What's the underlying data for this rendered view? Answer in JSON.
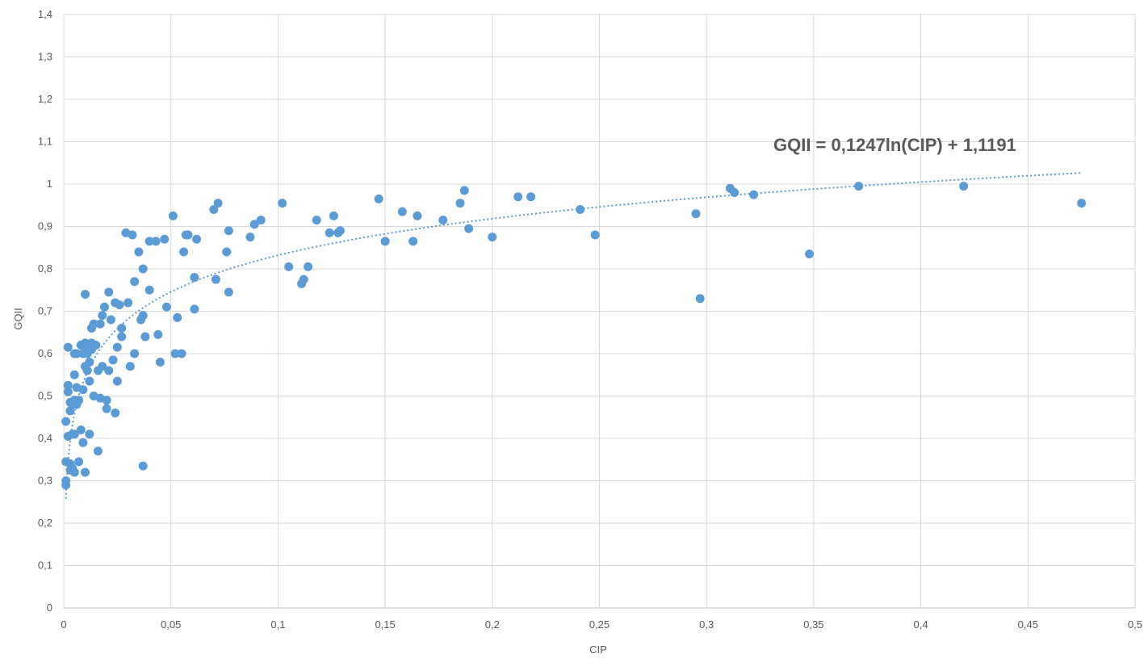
{
  "chart_data": {
    "type": "scatter",
    "title": "",
    "xlabel": "CIP",
    "ylabel": "GQII",
    "xlim": [
      0,
      0.5
    ],
    "ylim": [
      0,
      1.4
    ],
    "x_ticks": [
      "0",
      "0,05",
      "0,1",
      "0,15",
      "0,2",
      "0,25",
      "0,3",
      "0,35",
      "0,4",
      "0,45",
      "0,5"
    ],
    "y_ticks": [
      "0",
      "0,1",
      "0,2",
      "0,3",
      "0,4",
      "0,5",
      "0,6",
      "0,7",
      "0,8",
      "0,9",
      "1",
      "1,1",
      "1,2",
      "1,3",
      "1,4"
    ],
    "grid": true,
    "legend": "none",
    "color": "#5b9bd5",
    "trendline": {
      "type": "logarithmic",
      "a": 0.1247,
      "b": 1.1191,
      "x_range": [
        0.001,
        0.475
      ],
      "style": "dotted",
      "label": "GQII = 0,1247ln(CIP) + 1,1191"
    },
    "series": [
      {
        "points": [
          [
            0.001,
            0.44
          ],
          [
            0.001,
            0.345
          ],
          [
            0.001,
            0.3
          ],
          [
            0.001,
            0.29
          ],
          [
            0.002,
            0.615
          ],
          [
            0.002,
            0.525
          ],
          [
            0.002,
            0.51
          ],
          [
            0.002,
            0.405
          ],
          [
            0.003,
            0.485
          ],
          [
            0.003,
            0.465
          ],
          [
            0.003,
            0.34
          ],
          [
            0.003,
            0.325
          ],
          [
            0.004,
            0.48
          ],
          [
            0.004,
            0.41
          ],
          [
            0.004,
            0.33
          ],
          [
            0.005,
            0.6
          ],
          [
            0.005,
            0.55
          ],
          [
            0.005,
            0.49
          ],
          [
            0.005,
            0.41
          ],
          [
            0.005,
            0.32
          ],
          [
            0.006,
            0.52
          ],
          [
            0.006,
            0.48
          ],
          [
            0.006,
            0.6
          ],
          [
            0.007,
            0.49
          ],
          [
            0.007,
            0.345
          ],
          [
            0.008,
            0.62
          ],
          [
            0.008,
            0.42
          ],
          [
            0.009,
            0.39
          ],
          [
            0.009,
            0.515
          ],
          [
            0.009,
            0.6
          ],
          [
            0.01,
            0.74
          ],
          [
            0.01,
            0.625
          ],
          [
            0.01,
            0.57
          ],
          [
            0.01,
            0.32
          ],
          [
            0.011,
            0.615
          ],
          [
            0.011,
            0.6
          ],
          [
            0.011,
            0.56
          ],
          [
            0.012,
            0.58
          ],
          [
            0.012,
            0.535
          ],
          [
            0.012,
            0.41
          ],
          [
            0.013,
            0.625
          ],
          [
            0.013,
            0.61
          ],
          [
            0.013,
            0.66
          ],
          [
            0.014,
            0.67
          ],
          [
            0.014,
            0.5
          ],
          [
            0.015,
            0.62
          ],
          [
            0.016,
            0.37
          ],
          [
            0.016,
            0.56
          ],
          [
            0.017,
            0.67
          ],
          [
            0.017,
            0.495
          ],
          [
            0.018,
            0.69
          ],
          [
            0.018,
            0.57
          ],
          [
            0.019,
            0.71
          ],
          [
            0.02,
            0.49
          ],
          [
            0.02,
            0.47
          ],
          [
            0.021,
            0.745
          ],
          [
            0.021,
            0.56
          ],
          [
            0.022,
            0.68
          ],
          [
            0.023,
            0.585
          ],
          [
            0.024,
            0.72
          ],
          [
            0.024,
            0.46
          ],
          [
            0.025,
            0.535
          ],
          [
            0.025,
            0.615
          ],
          [
            0.026,
            0.715
          ],
          [
            0.027,
            0.66
          ],
          [
            0.027,
            0.64
          ],
          [
            0.029,
            0.885
          ],
          [
            0.03,
            0.72
          ],
          [
            0.031,
            0.57
          ],
          [
            0.032,
            0.88
          ],
          [
            0.033,
            0.6
          ],
          [
            0.033,
            0.77
          ],
          [
            0.035,
            0.84
          ],
          [
            0.036,
            0.68
          ],
          [
            0.037,
            0.69
          ],
          [
            0.037,
            0.8
          ],
          [
            0.037,
            0.335
          ],
          [
            0.038,
            0.64
          ],
          [
            0.04,
            0.75
          ],
          [
            0.04,
            0.865
          ],
          [
            0.043,
            0.865
          ],
          [
            0.044,
            0.645
          ],
          [
            0.045,
            0.58
          ],
          [
            0.047,
            0.87
          ],
          [
            0.048,
            0.71
          ],
          [
            0.051,
            0.925
          ],
          [
            0.052,
            0.6
          ],
          [
            0.053,
            0.685
          ],
          [
            0.055,
            0.6
          ],
          [
            0.056,
            0.84
          ],
          [
            0.057,
            0.88
          ],
          [
            0.058,
            0.88
          ],
          [
            0.061,
            0.78
          ],
          [
            0.061,
            0.705
          ],
          [
            0.062,
            0.87
          ],
          [
            0.07,
            0.94
          ],
          [
            0.071,
            0.775
          ],
          [
            0.072,
            0.955
          ],
          [
            0.076,
            0.84
          ],
          [
            0.077,
            0.89
          ],
          [
            0.077,
            0.745
          ],
          [
            0.087,
            0.875
          ],
          [
            0.089,
            0.905
          ],
          [
            0.092,
            0.915
          ],
          [
            0.102,
            0.955
          ],
          [
            0.105,
            0.805
          ],
          [
            0.111,
            0.765
          ],
          [
            0.112,
            0.775
          ],
          [
            0.114,
            0.805
          ],
          [
            0.118,
            0.915
          ],
          [
            0.124,
            0.885
          ],
          [
            0.126,
            0.925
          ],
          [
            0.128,
            0.885
          ],
          [
            0.129,
            0.89
          ],
          [
            0.147,
            0.965
          ],
          [
            0.15,
            0.865
          ],
          [
            0.158,
            0.935
          ],
          [
            0.163,
            0.865
          ],
          [
            0.165,
            0.925
          ],
          [
            0.177,
            0.915
          ],
          [
            0.185,
            0.955
          ],
          [
            0.187,
            0.985
          ],
          [
            0.189,
            0.895
          ],
          [
            0.2,
            0.875
          ],
          [
            0.212,
            0.97
          ],
          [
            0.218,
            0.97
          ],
          [
            0.241,
            0.94
          ],
          [
            0.248,
            0.88
          ],
          [
            0.295,
            0.93
          ],
          [
            0.297,
            0.73
          ],
          [
            0.311,
            0.99
          ],
          [
            0.313,
            0.98
          ],
          [
            0.322,
            0.975
          ],
          [
            0.348,
            0.835
          ],
          [
            0.371,
            0.995
          ],
          [
            0.42,
            0.995
          ],
          [
            0.475,
            0.955
          ]
        ]
      }
    ]
  }
}
